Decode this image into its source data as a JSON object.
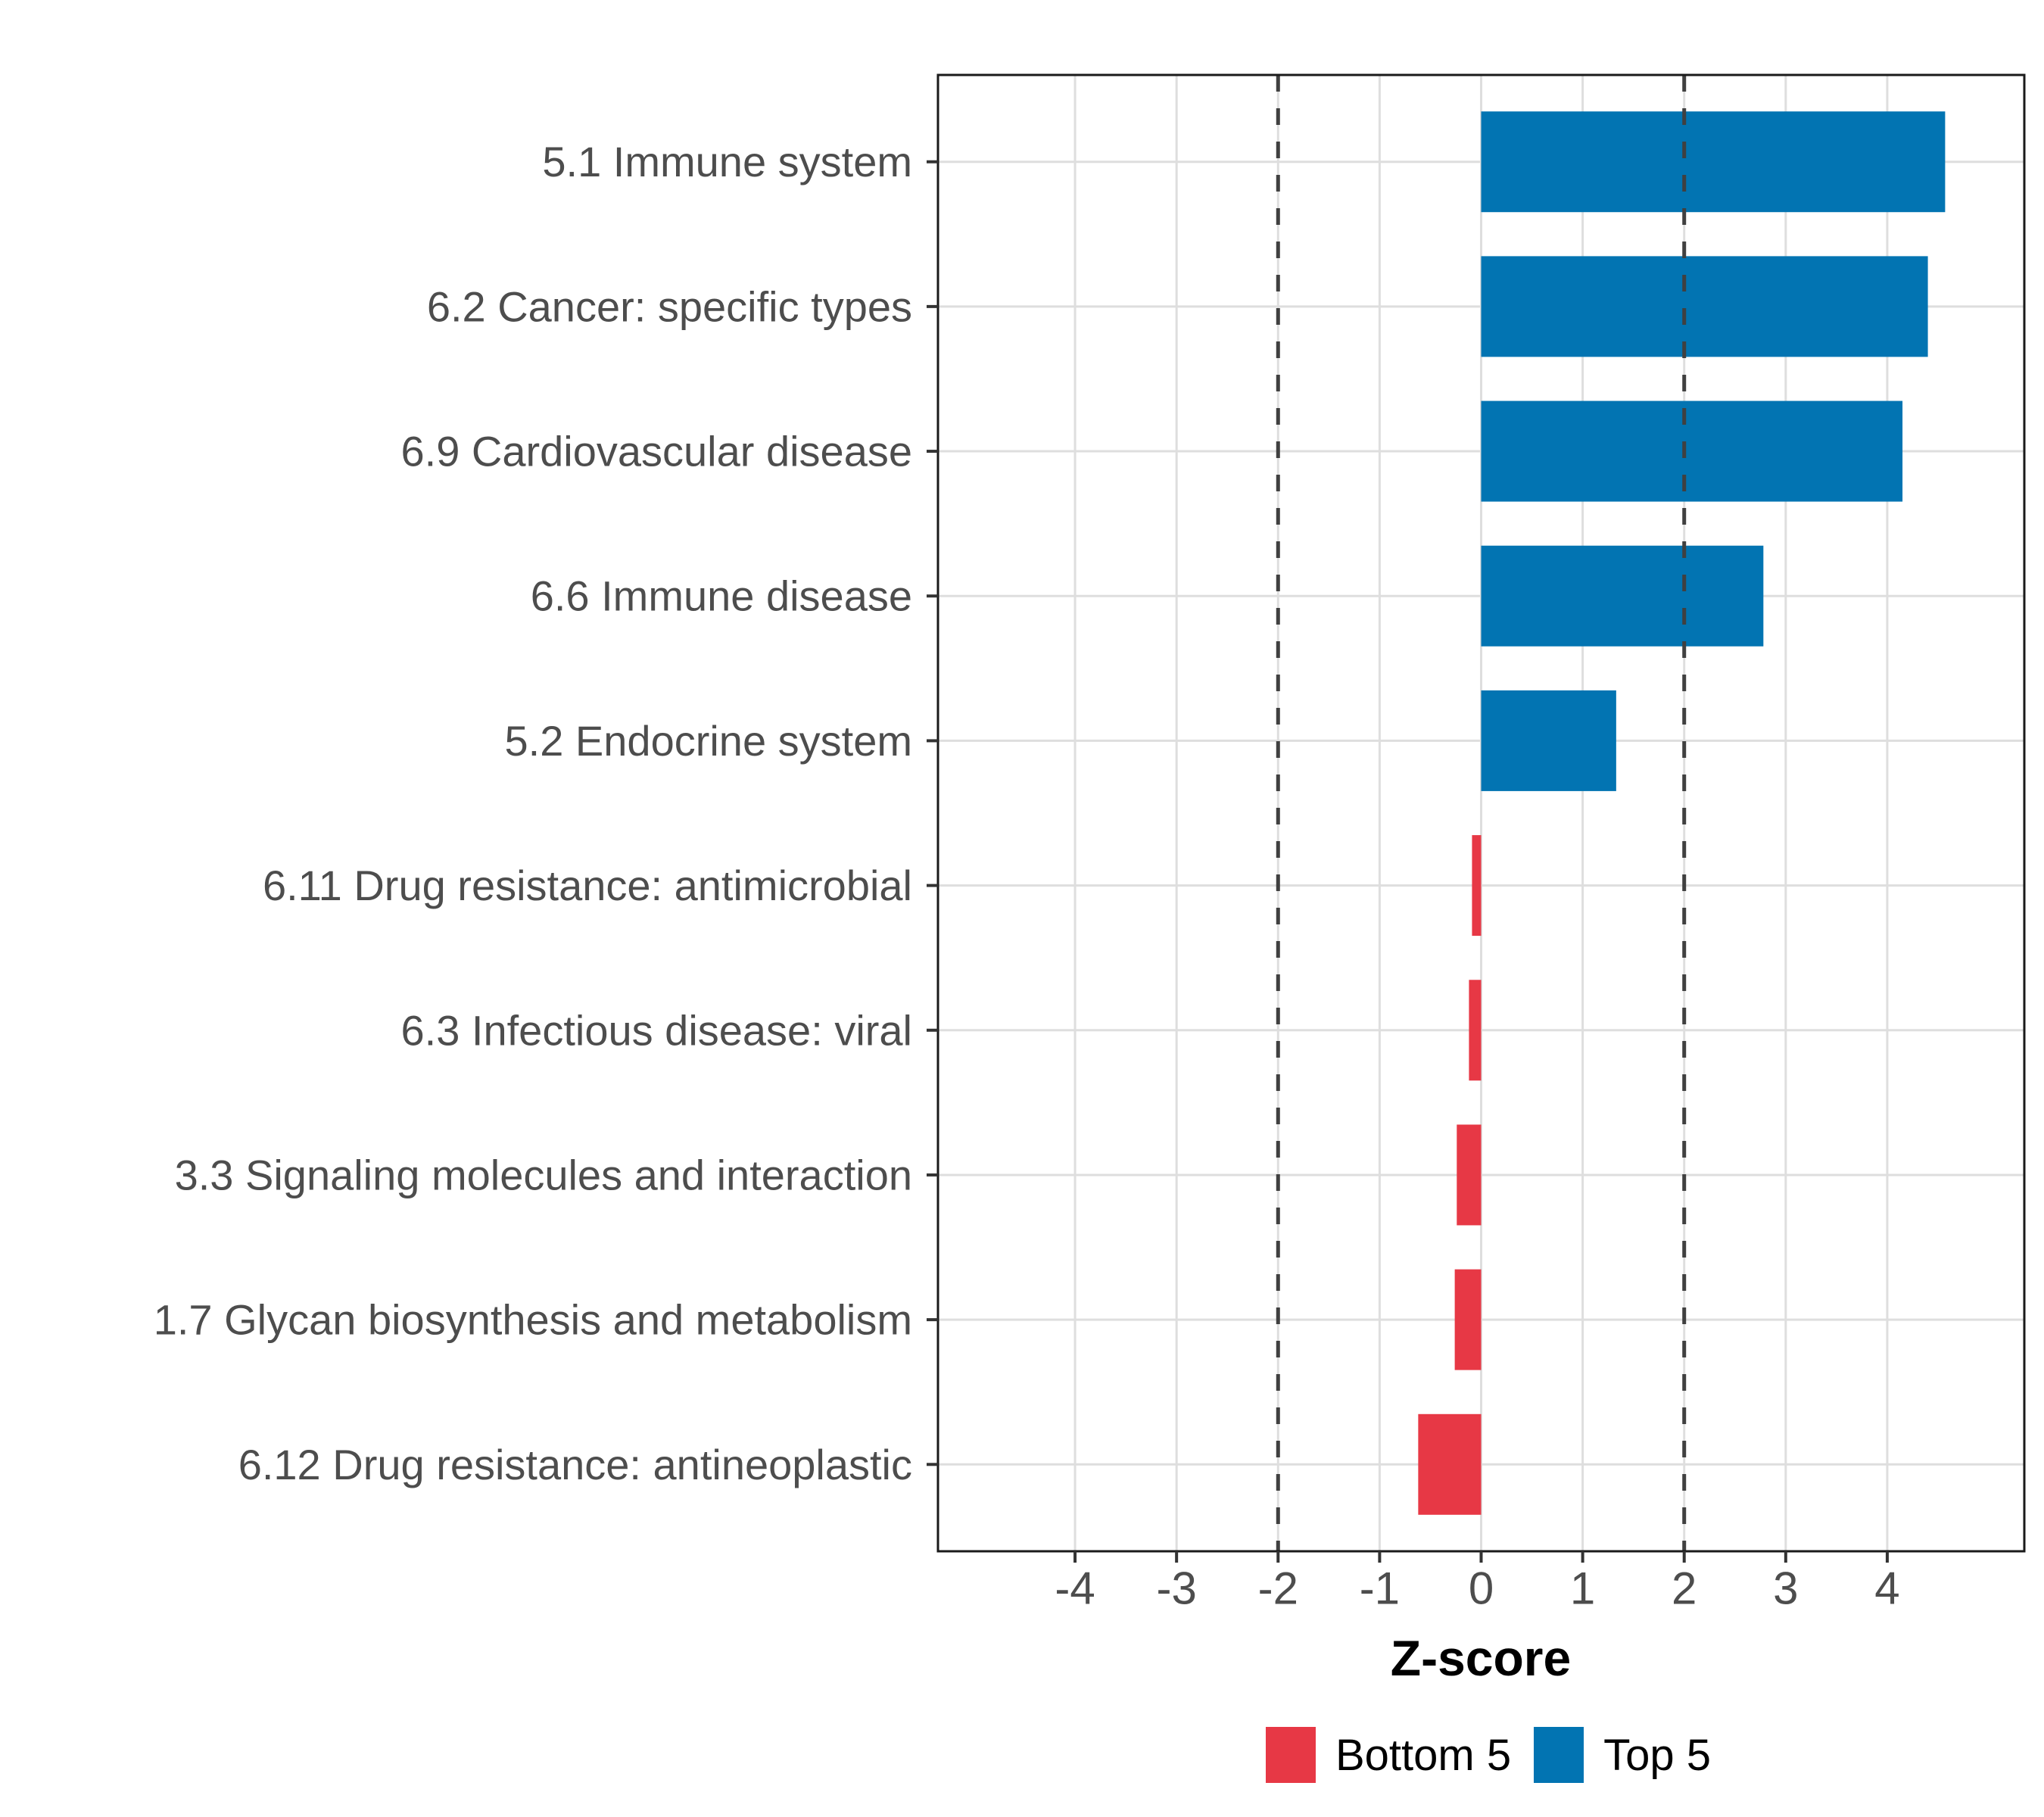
{
  "chart_data": {
    "type": "bar",
    "orientation": "horizontal",
    "xlabel": "Z-score",
    "categories": [
      "5.1 Immune system",
      "6.2 Cancer: specific types",
      "6.9 Cardiovascular disease",
      "6.6 Immune disease",
      "5.2 Endocrine system",
      "6.11 Drug resistance: antimicrobial",
      "6.3 Infectious disease: viral",
      "3.3 Signaling molecules and interaction",
      "1.7 Glycan biosynthesis and metabolism",
      "6.12 Drug resistance: antineoplastic"
    ],
    "values": [
      4.57,
      4.4,
      4.15,
      2.78,
      1.33,
      -0.09,
      -0.12,
      -0.24,
      -0.26,
      -0.62
    ],
    "groups": [
      "Top 5",
      "Top 5",
      "Top 5",
      "Top 5",
      "Top 5",
      "Bottom 5",
      "Bottom 5",
      "Bottom 5",
      "Bottom 5",
      "Bottom 5"
    ],
    "group_colors": {
      "Top 5": "#0274B2",
      "Bottom 5": "#E73845"
    },
    "x_ticks": [
      "-4",
      "-3",
      "-2",
      "-1",
      "0",
      "1",
      "2",
      "3",
      "4"
    ],
    "x_tick_values": [
      -4,
      -3,
      -2,
      -1,
      0,
      1,
      2,
      3,
      4
    ],
    "xlim": [
      -5.35,
      5.35
    ],
    "reference_lines": [
      -2,
      2
    ],
    "grid": "major-only",
    "legend_position": "bottom",
    "legend": [
      {
        "label": "Bottom 5",
        "color": "#E73845"
      },
      {
        "label": "Top 5",
        "color": "#0274B2"
      }
    ],
    "style_colors": {
      "gridline": "#DEDEDE",
      "panel_border": "#1A1A1A",
      "axis_text": "#4D4D4D",
      "tick_mark": "#333333",
      "reference_line": "#404040"
    }
  }
}
